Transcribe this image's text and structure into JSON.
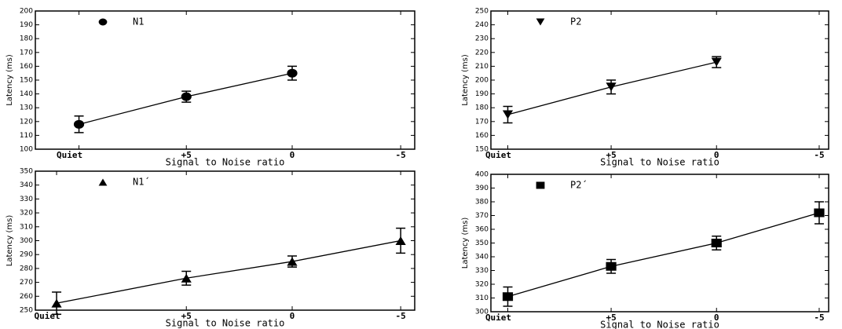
{
  "chart_data": [
    {
      "type": "line",
      "categories": [
        "Quiet",
        "+5",
        "0",
        "-5"
      ],
      "xlabel": "Signal to Noise ratio",
      "ylabel": "Latency (ms)",
      "ylim": [
        100,
        200
      ],
      "yticks": [
        100,
        110,
        120,
        130,
        140,
        150,
        160,
        170,
        180,
        190,
        200
      ],
      "series": [
        {
          "name": "N1",
          "color": "#000000",
          "marker": "circle",
          "values": [
            118,
            138,
            155,
            null
          ],
          "errors": [
            6,
            4,
            5,
            null
          ]
        }
      ]
    },
    {
      "type": "line",
      "categories": [
        "Quiet",
        "+5",
        "0",
        "-5"
      ],
      "xlabel": "Signal to Noise ratio",
      "ylabel": "Latency (ms)",
      "ylim": [
        150,
        250
      ],
      "yticks": [
        150,
        160,
        170,
        180,
        190,
        200,
        210,
        220,
        230,
        240,
        250
      ],
      "series": [
        {
          "name": "P2",
          "color": "#000000",
          "marker": "triangle-down",
          "values": [
            175,
            195,
            213,
            null
          ],
          "errors": [
            6,
            5,
            4,
            null
          ]
        }
      ]
    },
    {
      "type": "line",
      "categories": [
        "Quiet",
        "+5",
        "0",
        "-5"
      ],
      "xlabel": "Signal to Noise ratio",
      "ylabel": "Latency (ms)",
      "ylim": [
        250,
        350
      ],
      "yticks": [
        250,
        260,
        270,
        280,
        290,
        300,
        310,
        320,
        330,
        340,
        350
      ],
      "series": [
        {
          "name": "N1´",
          "color": "#000000",
          "marker": "triangle",
          "values": [
            255,
            273,
            285,
            300
          ],
          "errors": [
            8,
            5,
            4,
            9
          ]
        }
      ]
    },
    {
      "type": "line",
      "categories": [
        "Quiet",
        "+5",
        "0",
        "-5"
      ],
      "xlabel": "Signal to Noise ratio",
      "ylabel": "Latency (ms)",
      "ylim": [
        300,
        400
      ],
      "yticks": [
        300,
        310,
        320,
        330,
        340,
        350,
        360,
        370,
        380,
        390,
        400
      ],
      "series": [
        {
          "name": "P2´",
          "color": "#000000",
          "marker": "square",
          "values": [
            311,
            333,
            350,
            372
          ],
          "errors": [
            7,
            5,
            5,
            8
          ]
        }
      ]
    }
  ]
}
